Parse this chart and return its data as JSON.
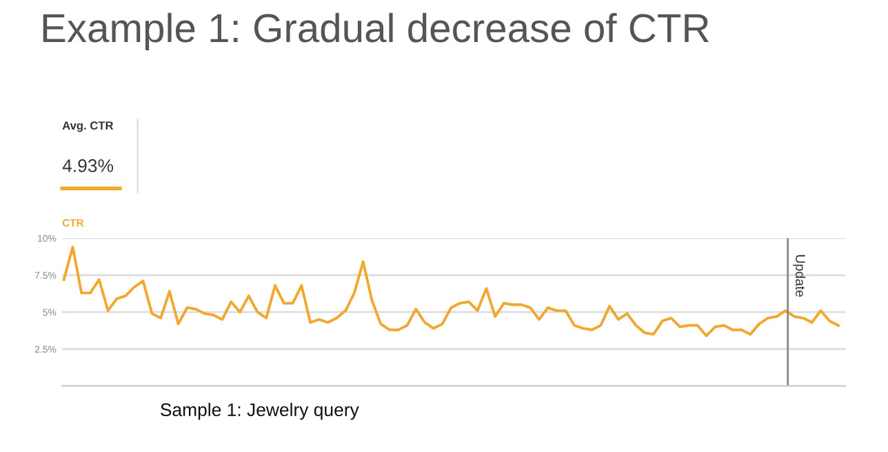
{
  "chart_data": {
    "type": "line",
    "title": "Example 1: Gradual decrease of CTR",
    "ylabel": "CTR",
    "annotations": [
      "Avg. CTR",
      "4.93%",
      "Sample 1: Jewelry query",
      "Update"
    ],
    "categories": [
      null,
      null,
      null,
      null,
      null,
      null,
      null,
      null,
      null,
      null,
      null,
      null,
      null,
      null,
      null,
      null,
      null,
      null,
      null,
      null,
      null,
      null,
      null,
      null,
      null,
      null,
      null,
      null,
      null,
      null,
      null,
      null,
      null,
      null,
      null,
      null,
      null,
      null,
      null,
      null,
      null,
      null,
      null,
      null,
      null,
      null,
      null,
      null,
      null,
      null,
      null,
      null,
      null,
      null,
      null,
      null,
      null,
      null,
      null,
      null,
      null,
      null,
      null,
      null,
      null,
      null,
      null,
      null,
      null,
      null,
      null,
      null,
      null,
      null,
      null,
      null,
      null,
      null,
      null,
      null,
      null,
      null,
      null,
      null,
      null,
      null,
      null,
      null,
      null
    ],
    "series": [
      {
        "color": "#f0a830",
        "values": [
          7.2,
          9.4,
          6.3,
          6.3,
          7.2,
          5.1,
          5.9,
          6.1,
          6.7,
          7.1,
          4.9,
          4.6,
          6.4,
          4.2,
          5.3,
          5.2,
          4.9,
          4.8,
          4.5,
          5.7,
          5.0,
          6.1,
          5.0,
          4.6,
          6.8,
          5.6,
          5.6,
          6.8,
          4.3,
          4.5,
          4.3,
          4.6,
          5.1,
          6.3,
          8.4,
          5.8,
          4.2,
          3.8,
          3.8,
          4.1,
          5.2,
          4.3,
          3.9,
          4.2,
          5.3,
          5.6,
          5.7,
          5.1,
          6.6,
          4.7,
          5.6,
          5.5,
          5.5,
          5.3,
          4.5,
          5.3,
          5.1,
          5.1,
          4.1,
          3.9,
          3.8,
          4.1,
          5.4,
          4.5,
          4.9,
          4.1,
          3.6,
          3.5,
          4.4,
          4.6,
          4.0,
          4.1,
          4.1,
          3.4,
          4.0,
          4.1,
          3.8,
          3.8,
          3.5,
          4.2,
          4.6,
          4.7,
          5.1,
          4.7,
          4.6,
          4.3,
          5.1,
          4.4,
          4.1
        ]
      }
    ],
    "ylim": [
      0,
      10
    ],
    "yticks": [
      {
        "value": 0,
        "label": null
      },
      {
        "value": 2.5,
        "label": "2.5%"
      },
      {
        "value": 5,
        "label": "5%"
      },
      {
        "value": 7.5,
        "label": "7.5%"
      },
      {
        "value": 10,
        "label": "10%"
      }
    ],
    "grid": "y",
    "legend": false,
    "marker": "none",
    "line_style": "solid"
  }
}
